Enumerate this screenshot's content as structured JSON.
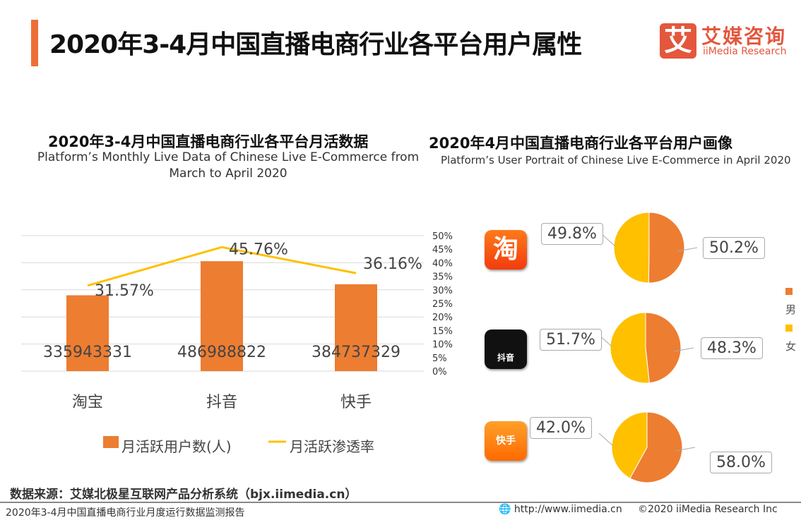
{
  "header": {
    "title": "2020年3-4月中国直播电商行业各平台用户属性",
    "logo_cn": "艾媒咨询",
    "logo_en": "iiMedia Research",
    "logo_mark": "艾"
  },
  "chart_data": [
    {
      "type": "bar+line",
      "title": "2020年3-4月中国直播电商行业各平台月活数据",
      "subtitle": "Platform’s Monthly Live Data of Chinese Live E-Commerce from March to April 2020",
      "categories": [
        "淘宝",
        "抖音",
        "快手"
      ],
      "series": [
        {
          "name": "月活跃用户数(人)",
          "type": "bar",
          "values": [
            335943331,
            486988822,
            384737329
          ],
          "labels": [
            "335943331",
            "486988822",
            "384737329"
          ],
          "color": "#ed7d31"
        },
        {
          "name": "月活跃渗透率",
          "type": "line",
          "values": [
            31.57,
            45.76,
            36.16
          ],
          "labels": [
            "31.57%",
            "45.76%",
            "36.16%"
          ],
          "color": "#ffc000"
        }
      ],
      "y2_ticks": [
        "50%",
        "45%",
        "40%",
        "35%",
        "30%",
        "25%",
        "20%",
        "15%",
        "10%",
        "5%",
        "0%"
      ],
      "y2lim": [
        0,
        50
      ],
      "legend": "bottom",
      "grid": true
    },
    {
      "type": "pie",
      "title": "2020年4月中国直播电商行业各平台用户画像",
      "subtitle": "Platform’s User Portrait of Chinese Live E-Commerce in April 2020",
      "legend": [
        "男",
        "女"
      ],
      "colors": [
        "#ed7d31",
        "#ffc000"
      ],
      "pies": [
        {
          "platform": "淘宝",
          "icon": "淘",
          "male": 50.2,
          "female": 49.8,
          "male_label": "50.2%",
          "female_label": "49.8%"
        },
        {
          "platform": "抖音",
          "icon": "抖音",
          "male": 48.3,
          "female": 51.7,
          "male_label": "48.3%",
          "female_label": "51.7%"
        },
        {
          "platform": "快手",
          "icon": "快手",
          "male": 58.0,
          "female": 42.0,
          "male_label": "58.0%",
          "female_label": "42.0%"
        }
      ]
    }
  ],
  "footer": {
    "source": "数据来源：艾媒北极星互联网产品分析系统（bjx.iimedia.cn）",
    "report": "2020年3-4月中国直播电商行业月度运行数据监测报告",
    "url": "http://www.iimedia.cn",
    "copyright": "©2020  iiMedia Research  Inc"
  }
}
